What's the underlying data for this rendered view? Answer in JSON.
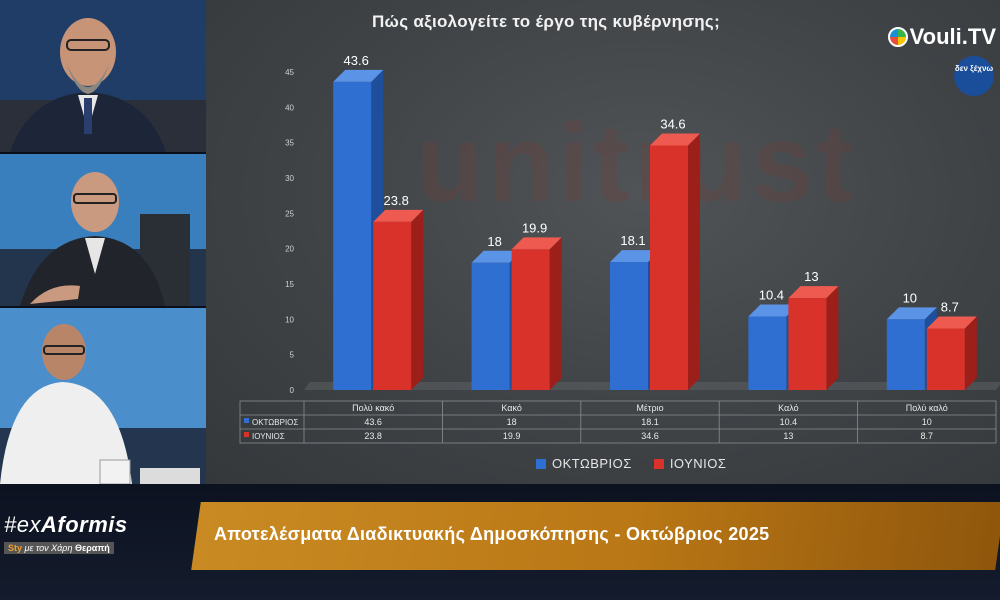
{
  "show": {
    "hashtag_prefix": "#ex",
    "name": "Aformis",
    "sub_prefix": "με τον Χάρη",
    "sub_name": "Θεραπή",
    "sub_tag": "Sty"
  },
  "banner": {
    "text": "Αποτελέσματα Διαδικτυακής Δημοσκόπησης - Οκτώβριος 2025"
  },
  "channel": {
    "logo_text": "Vouli.TV",
    "badge_text": "δεν ξέχνω"
  },
  "watermark": "unitrust",
  "colors": {
    "series1": "#2e6fd1",
    "series2": "#d9322a",
    "banner": "#c08020"
  },
  "chart_data": {
    "type": "bar",
    "title": "Πώς αξιολογείτε το έργο της κυβέρνησης;",
    "categories": [
      "Πολύ κακό",
      "Κακό",
      "Μέτριο",
      "Καλό",
      "Πολύ καλό"
    ],
    "series": [
      {
        "name": "ΟΚΤΩΒΡΙΟΣ",
        "values": [
          43.6,
          18,
          18.1,
          10.4,
          10
        ]
      },
      {
        "name": "ΙΟΥΝΙΟΣ",
        "values": [
          23.8,
          19.9,
          34.6,
          13,
          8.7
        ]
      }
    ],
    "ylim": [
      0,
      45
    ],
    "yticks": [
      0,
      5,
      10,
      15,
      20,
      25,
      30,
      35,
      40,
      45
    ],
    "xlabel": "",
    "ylabel": "",
    "legend": "bottom",
    "data_table": true,
    "grid": false
  }
}
